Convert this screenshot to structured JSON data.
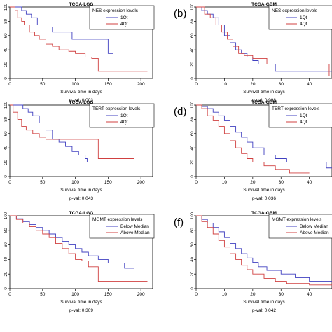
{
  "chart_data": [
    {
      "panel": "",
      "type": "line",
      "title": "TCGA-LGG",
      "xlabel": "Survival time in days",
      "ylabel": "",
      "xlim": [
        0,
        218
      ],
      "ylim": [
        0,
        100
      ],
      "xticks": [
        0,
        50,
        100,
        150,
        200
      ],
      "yticks": [
        0,
        20,
        40,
        60,
        80,
        100
      ],
      "grid": false,
      "legend": {
        "title": "NES expression levels",
        "placement": "top-right",
        "entries": [
          "1Qt",
          "4Qt"
        ]
      },
      "pval": "p-val: 0.003",
      "series": [
        {
          "name": "1Qt",
          "color": "#4040c0",
          "x": [
            0,
            12,
            18,
            25,
            33,
            42,
            55,
            65,
            95,
            115,
            120,
            145,
            150,
            158
          ],
          "y": [
            100,
            100,
            95,
            90,
            85,
            75,
            72,
            65,
            55,
            55,
            55,
            55,
            35,
            35
          ]
        },
        {
          "name": "4Qt",
          "color": "#d04040",
          "x": [
            0,
            8,
            12,
            18,
            22,
            30,
            38,
            45,
            55,
            65,
            75,
            90,
            100,
            115,
            125,
            135,
            210
          ],
          "y": [
            100,
            95,
            85,
            80,
            75,
            65,
            60,
            55,
            48,
            45,
            40,
            38,
            35,
            30,
            28,
            10,
            10
          ]
        }
      ]
    },
    {
      "panel": "(b)",
      "type": "line",
      "title": "TCGA-GBM",
      "xlabel": "Survival time in days",
      "ylabel": "",
      "xlim": [
        0,
        48
      ],
      "ylim": [
        0,
        100
      ],
      "xticks": [
        0,
        10,
        20,
        30,
        40
      ],
      "yticks": [
        0,
        20,
        40,
        60,
        80,
        100
      ],
      "grid": false,
      "legend": {
        "title": "NES expression levels",
        "placement": "top-right",
        "entries": [
          "1Qt",
          "4Qt"
        ]
      },
      "pval": "p-val: 0.998",
      "series": [
        {
          "name": "1Qt",
          "color": "#4040c0",
          "x": [
            0,
            2,
            4,
            6,
            8,
            10,
            12,
            14,
            16,
            18,
            20,
            22,
            28,
            48
          ],
          "y": [
            100,
            95,
            90,
            85,
            75,
            60,
            50,
            40,
            35,
            30,
            25,
            20,
            10,
            10
          ]
        },
        {
          "name": "4Qt",
          "color": "#d04040",
          "x": [
            0,
            3,
            5,
            7,
            9,
            11,
            13,
            15,
            17,
            20,
            25,
            30,
            46,
            47
          ],
          "y": [
            100,
            90,
            85,
            75,
            65,
            55,
            45,
            35,
            32,
            28,
            20,
            20,
            20,
            3
          ]
        }
      ]
    },
    {
      "panel": "",
      "type": "line",
      "title": "TCGA-LGG",
      "xlabel": "Survival time in days",
      "ylabel": "",
      "xlim": [
        0,
        218
      ],
      "ylim": [
        0,
        100
      ],
      "xticks": [
        0,
        50,
        100,
        150,
        200
      ],
      "yticks": [
        0,
        20,
        40,
        60,
        80,
        100
      ],
      "grid": false,
      "legend": {
        "title": "TERT expression levels",
        "placement": "top-right",
        "entries": [
          "1Qt",
          "4Qt"
        ]
      },
      "pval": "p-val: 0.043",
      "series": [
        {
          "name": "1Qt",
          "color": "#4040c0",
          "x": [
            0,
            10,
            20,
            28,
            35,
            45,
            55,
            65,
            75,
            85,
            95,
            105,
            115,
            118,
            190
          ],
          "y": [
            100,
            100,
            95,
            90,
            85,
            75,
            65,
            52,
            48,
            42,
            35,
            30,
            25,
            20,
            20
          ]
        },
        {
          "name": "4Qt",
          "color": "#d04040",
          "x": [
            0,
            5,
            12,
            18,
            25,
            35,
            45,
            55,
            65,
            75,
            85,
            135,
            190
          ],
          "y": [
            100,
            90,
            80,
            70,
            65,
            60,
            55,
            52,
            52,
            52,
            52,
            25,
            25
          ]
        }
      ]
    },
    {
      "panel": "(d)",
      "type": "line",
      "title": "TCGA-GBM",
      "xlabel": "Survival time in days",
      "ylabel": "",
      "xlim": [
        0,
        48
      ],
      "ylim": [
        0,
        100
      ],
      "xticks": [
        0,
        10,
        20,
        30,
        40
      ],
      "yticks": [
        0,
        20,
        40,
        60,
        80,
        100
      ],
      "grid": false,
      "legend": {
        "title": "TERT expression levels",
        "placement": "top-right",
        "entries": [
          "1Qt",
          "4Qt"
        ]
      },
      "pval": "p-val: 0.036",
      "series": [
        {
          "name": "1Qt",
          "color": "#4040c0",
          "x": [
            0,
            2,
            4,
            6,
            8,
            10,
            12,
            14,
            16,
            18,
            20,
            24,
            28,
            32,
            46,
            48
          ],
          "y": [
            100,
            98,
            95,
            90,
            85,
            78,
            70,
            62,
            55,
            48,
            40,
            30,
            25,
            20,
            12,
            12
          ]
        },
        {
          "name": "4Qt",
          "color": "#d04040",
          "x": [
            0,
            2,
            4,
            6,
            8,
            10,
            12,
            14,
            16,
            18,
            20,
            24,
            28,
            33,
            40
          ],
          "y": [
            100,
            95,
            85,
            78,
            70,
            60,
            50,
            40,
            32,
            25,
            20,
            15,
            10,
            5,
            5
          ]
        }
      ]
    },
    {
      "panel": "",
      "type": "line",
      "title": "TCGA-LGG",
      "xlabel": "Survival time in days",
      "ylabel": "",
      "xlim": [
        0,
        218
      ],
      "ylim": [
        0,
        100
      ],
      "xticks": [
        0,
        50,
        100,
        150,
        200
      ],
      "yticks": [
        0,
        20,
        40,
        60,
        80,
        100
      ],
      "grid": false,
      "legend": {
        "title": "MGMT expression levels",
        "placement": "top-right",
        "entries": [
          "Below Median",
          "Above Median"
        ]
      },
      "pval": "p-val: 0.309",
      "series": [
        {
          "name": "Below Median",
          "color": "#4040c0",
          "x": [
            0,
            10,
            20,
            30,
            40,
            50,
            60,
            70,
            80,
            90,
            100,
            110,
            120,
            135,
            150,
            175,
            190
          ],
          "y": [
            100,
            96,
            92,
            88,
            84,
            80,
            75,
            70,
            65,
            60,
            55,
            50,
            45,
            40,
            35,
            28,
            28
          ]
        },
        {
          "name": "Above Median",
          "color": "#d04040",
          "x": [
            0,
            10,
            20,
            30,
            40,
            50,
            60,
            70,
            80,
            90,
            100,
            110,
            120,
            135,
            210
          ],
          "y": [
            100,
            95,
            90,
            85,
            80,
            75,
            70,
            62,
            55,
            48,
            40,
            38,
            30,
            10,
            10
          ]
        }
      ]
    },
    {
      "panel": "(f)",
      "type": "line",
      "title": "TCGA-GBM",
      "xlabel": "Survival time in days",
      "ylabel": "",
      "xlim": [
        0,
        48
      ],
      "ylim": [
        0,
        100
      ],
      "xticks": [
        0,
        10,
        20,
        30,
        40
      ],
      "yticks": [
        0,
        20,
        40,
        60,
        80,
        100
      ],
      "grid": false,
      "legend": {
        "title": "MGMT expression levels",
        "placement": "top-right",
        "entries": [
          "Below Median",
          "Above Median"
        ]
      },
      "pval": "p-val: 0.042",
      "series": [
        {
          "name": "Below Median",
          "color": "#4040c0",
          "x": [
            0,
            2,
            4,
            6,
            8,
            10,
            12,
            14,
            16,
            18,
            20,
            22,
            25,
            30,
            35,
            40,
            48
          ],
          "y": [
            100,
            95,
            90,
            84,
            78,
            70,
            62,
            55,
            48,
            42,
            36,
            30,
            25,
            20,
            15,
            10,
            10
          ]
        },
        {
          "name": "Above Median",
          "color": "#d04040",
          "x": [
            0,
            2,
            4,
            6,
            8,
            10,
            12,
            14,
            16,
            18,
            20,
            24,
            28,
            32,
            40,
            48
          ],
          "y": [
            100,
            92,
            84,
            75,
            66,
            57,
            48,
            40,
            32,
            26,
            20,
            14,
            10,
            7,
            5,
            5
          ]
        }
      ]
    }
  ]
}
